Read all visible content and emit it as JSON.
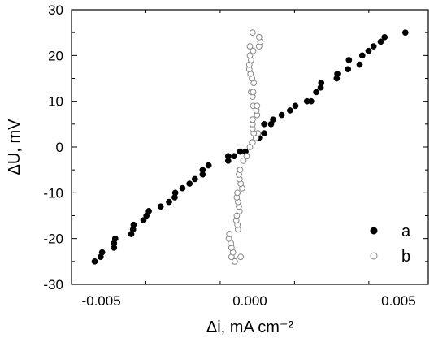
{
  "chart_data": {
    "type": "scatter",
    "xlabel": "Δi, mA cm⁻²",
    "ylabel": "ΔU, mV",
    "xlim": [
      -0.006,
      0.006
    ],
    "ylim": [
      -30,
      30
    ],
    "xticks": [
      -0.005,
      0.0,
      0.005
    ],
    "xtick_labels": [
      "-0.005",
      "0.000",
      "0.005"
    ],
    "yticks": [
      -30,
      -20,
      -10,
      0,
      10,
      20,
      30
    ],
    "ytick_labels": [
      "-30",
      "-20",
      "-10",
      "0",
      "10",
      "20",
      "30"
    ],
    "grid": false,
    "legend": "bottom-right",
    "colors": {
      "a": "#000000",
      "b": "#888888"
    },
    "series": [
      {
        "name": "a",
        "marker": "filled-circle",
        "points": [
          [
            -0.00522,
            -25
          ],
          [
            -0.00502,
            -24
          ],
          [
            -0.00497,
            -23
          ],
          [
            -0.00457,
            -22
          ],
          [
            -0.00457,
            -21
          ],
          [
            -0.00453,
            -20
          ],
          [
            -0.00399,
            -19
          ],
          [
            -0.00393,
            -18
          ],
          [
            -0.00391,
            -17
          ],
          [
            -0.00358,
            -16
          ],
          [
            -0.00348,
            -15
          ],
          [
            -0.0034,
            -14
          ],
          [
            -0.003,
            -13
          ],
          [
            -0.00272,
            -12
          ],
          [
            -0.00253,
            -11
          ],
          [
            -0.00251,
            -10
          ],
          [
            -0.00227,
            -9
          ],
          [
            -0.00203,
            -8
          ],
          [
            -0.00185,
            -7
          ],
          [
            -0.00159,
            -6
          ],
          [
            -0.00159,
            -5
          ],
          [
            -0.00139,
            -4
          ],
          [
            -0.00073,
            -3
          ],
          [
            -0.00073,
            -2
          ],
          [
            -0.00053,
            -2
          ],
          [
            -0.00033,
            -1
          ],
          [
            -0.00015,
            -1
          ],
          [
            8e-05,
            1
          ],
          [
            0.00031,
            2
          ],
          [
            0.00048,
            3
          ],
          [
            0.00048,
            5
          ],
          [
            0.00071,
            5
          ],
          [
            0.00078,
            6
          ],
          [
            0.00107,
            7
          ],
          [
            0.00135,
            8
          ],
          [
            0.00153,
            9
          ],
          [
            0.00192,
            10
          ],
          [
            0.00206,
            10
          ],
          [
            0.00223,
            12
          ],
          [
            0.00238,
            13
          ],
          [
            0.0024,
            14
          ],
          [
            0.00292,
            15
          ],
          [
            0.00294,
            16
          ],
          [
            0.0033,
            17
          ],
          [
            0.00333,
            19
          ],
          [
            0.00369,
            18
          ],
          [
            0.00378,
            20
          ],
          [
            0.00399,
            21
          ],
          [
            0.00416,
            22
          ],
          [
            0.0044,
            23
          ],
          [
            0.00453,
            24
          ],
          [
            0.00523,
            25
          ]
        ]
      },
      {
        "name": "b",
        "marker": "open-circle",
        "points": [
          [
            -0.00051,
            -25
          ],
          [
            -0.00062,
            -24
          ],
          [
            -0.00057,
            -23
          ],
          [
            -0.00062,
            -22
          ],
          [
            -0.00064,
            -21
          ],
          [
            -0.00071,
            -20
          ],
          [
            -0.00069,
            -19
          ],
          [
            -0.00031,
            -24
          ],
          [
            -0.0004,
            -18
          ],
          [
            -0.00042,
            -17
          ],
          [
            -0.00046,
            -16
          ],
          [
            -0.00044,
            -15
          ],
          [
            -0.00035,
            -14
          ],
          [
            -0.00037,
            -13
          ],
          [
            -0.0004,
            -12
          ],
          [
            -0.00044,
            -11
          ],
          [
            -0.00042,
            -10
          ],
          [
            -0.00026,
            -9
          ],
          [
            -0.00031,
            -8
          ],
          [
            -0.00035,
            -7
          ],
          [
            -0.00037,
            -6
          ],
          [
            -0.00033,
            -5
          ],
          [
            -0.00022,
            -3
          ],
          [
            -0.00011,
            -2
          ],
          [
            0.0,
            0
          ],
          [
            9e-05,
            1
          ],
          [
            0.0002,
            2
          ],
          [
            0.00027,
            3
          ],
          [
            0.00013,
            3
          ],
          [
            9e-05,
            4
          ],
          [
            9e-05,
            5
          ],
          [
            9e-05,
            6
          ],
          [
            0.00024,
            7
          ],
          [
            0.00022,
            8
          ],
          [
            0.00011,
            9
          ],
          [
            0.00024,
            9
          ],
          [
            9e-05,
            11
          ],
          [
            4e-05,
            12
          ],
          [
            0.00011,
            12
          ],
          [
            0.00013,
            14
          ],
          [
            7e-05,
            15
          ],
          [
            2e-05,
            16
          ],
          [
            -2e-05,
            17
          ],
          [
            -2e-05,
            18
          ],
          [
            4e-05,
            19
          ],
          [
            0.0,
            20
          ],
          [
            0.00011,
            21
          ],
          [
            0.0,
            22
          ],
          [
            0.00031,
            22
          ],
          [
            0.00035,
            23
          ],
          [
            0.00031,
            24
          ],
          [
            9e-05,
            25
          ]
        ]
      }
    ]
  }
}
